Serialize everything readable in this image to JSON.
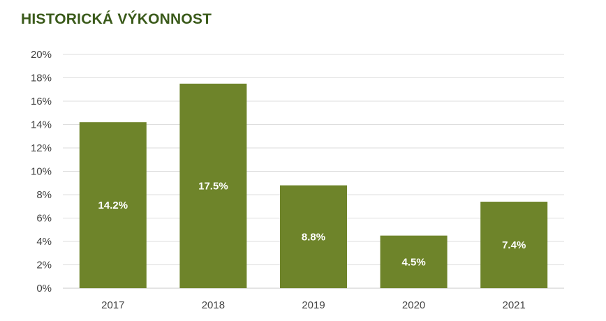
{
  "chart_data": {
    "type": "bar",
    "title": "HISTORICKÁ VÝKONNOST",
    "categories": [
      "2017",
      "2018",
      "2019",
      "2020",
      "2021"
    ],
    "values": [
      14.2,
      17.5,
      8.8,
      4.5,
      7.4
    ],
    "data_labels": [
      "14.2%",
      "17.5%",
      "8.8%",
      "4.5%",
      "7.4%"
    ],
    "y_ticks": [
      "0%",
      "2%",
      "4%",
      "6%",
      "8%",
      "10%",
      "12%",
      "14%",
      "16%",
      "18%",
      "20%"
    ],
    "ylim": [
      0,
      20
    ],
    "xlabel": "",
    "ylabel": "",
    "grid": true,
    "legend": "none",
    "bar_color": "#6e842a",
    "title_color": "#3a5a1a"
  }
}
